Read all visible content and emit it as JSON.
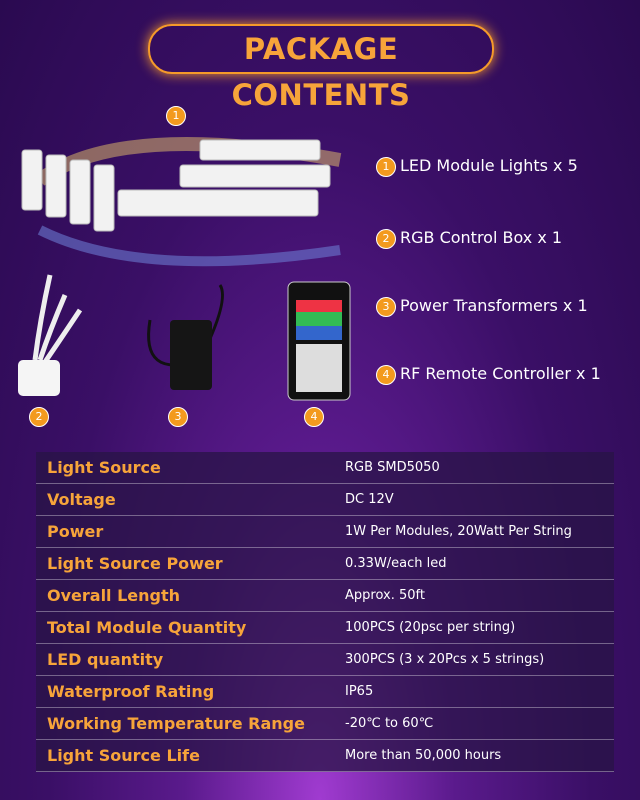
{
  "header": {
    "title": "PACKAGE CONTENTS"
  },
  "image_badges": [
    "1",
    "2",
    "3",
    "4"
  ],
  "contents": [
    {
      "number": "1",
      "label": "LED Module Lights x 5"
    },
    {
      "number": "2",
      "label": "RGB Control Box x 1"
    },
    {
      "number": "3",
      "label": "Power Transformers x 1"
    },
    {
      "number": "4",
      "label": "RF Remote Controller x 1"
    }
  ],
  "table": {
    "rows": [
      [
        "Light Source",
        "RGB SMD5050"
      ],
      [
        "Voltage",
        "DC 12V"
      ],
      [
        "Power",
        "1W Per Modules, 20Watt Per String"
      ],
      [
        "Light Source Power",
        "0.33W/each led"
      ],
      [
        "Overall Length",
        "Approx. 50ft"
      ],
      [
        "Total Module Quantity",
        "100PCS (20psc per string)"
      ],
      [
        "LED quantity",
        "300PCS (3 x 20Pcs x 5 strings)"
      ],
      [
        "Waterproof Rating",
        "IP65"
      ],
      [
        "Working Temperature Range",
        "-20℃ to 60℃"
      ],
      [
        "Light Source Life",
        "More than 50,000 hours"
      ]
    ]
  }
}
